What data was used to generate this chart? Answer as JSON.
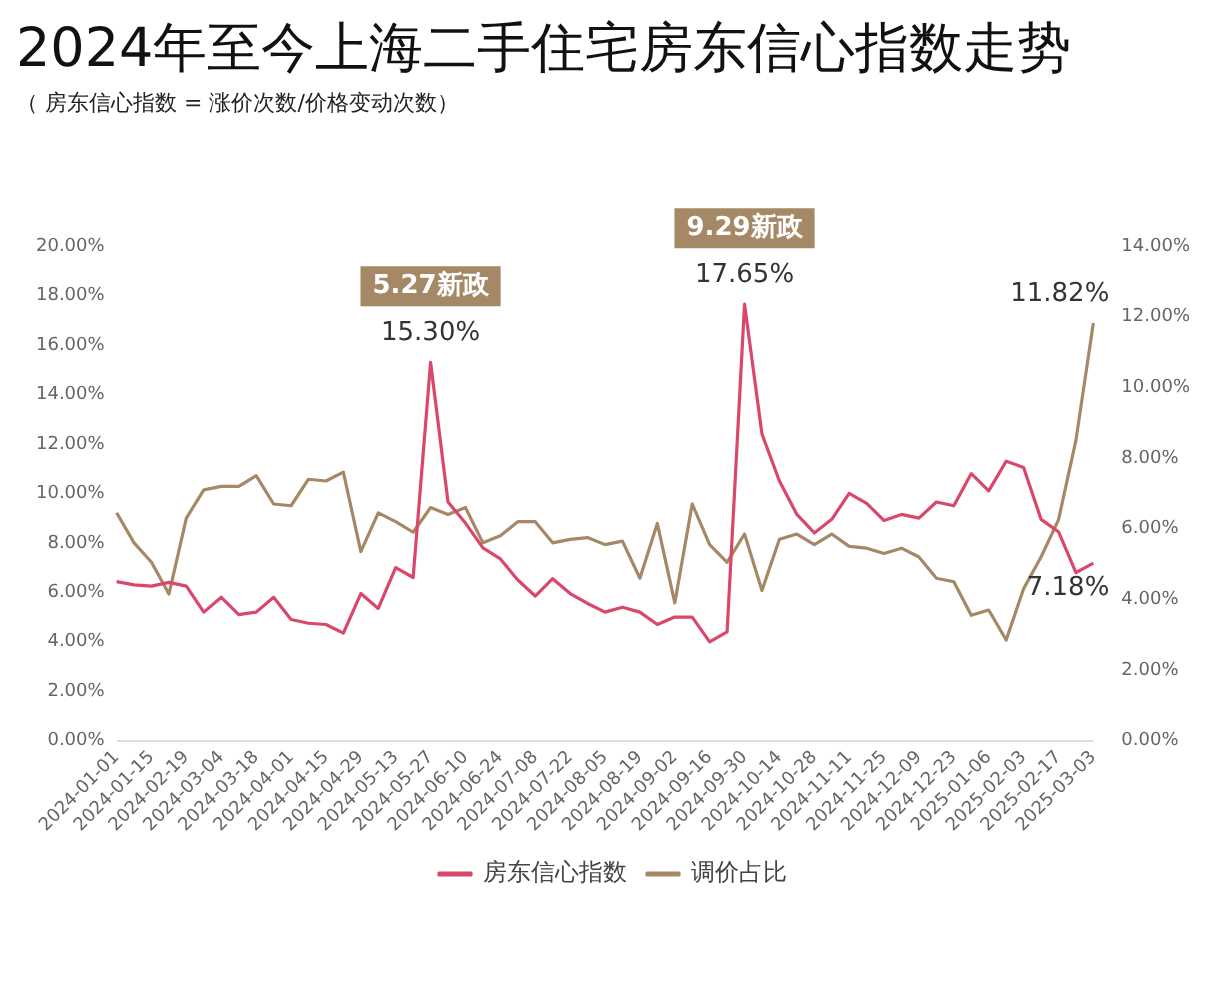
{
  "chart_data": {
    "type": "line",
    "title": "2024年至今上海二手住宅房东信心指数走势",
    "subtitle": "（ 房东信心指数 = 涨价次数/价格变动次数）",
    "categories": [
      "2024-01-01",
      null,
      "2024-01-15",
      null,
      "2024-02-19",
      null,
      "2024-03-04",
      null,
      "2024-03-18",
      null,
      "2024-04-01",
      null,
      "2024-04-15",
      null,
      "2024-04-29",
      null,
      "2024-05-13",
      null,
      "2024-05-27",
      null,
      "2024-06-10",
      null,
      "2024-06-24",
      null,
      "2024-07-08",
      null,
      "2024-07-22",
      null,
      "2024-08-05",
      null,
      "2024-08-19",
      null,
      "2024-09-02",
      null,
      "2024-09-16",
      null,
      "2024-09-30",
      null,
      "2024-10-14",
      null,
      "2024-10-28",
      null,
      "2024-11-11",
      null,
      "2024-11-25",
      null,
      "2024-12-09",
      null,
      "2024-12-23",
      null,
      "2025-01-06",
      null,
      "2025-02-03",
      null,
      "2025-02-17",
      null,
      "2025-03-03"
    ],
    "series": [
      {
        "name": "房东信心指数",
        "color": "#d9476b",
        "values": [
          6.43,
          6.3,
          6.25,
          6.4,
          6.25,
          5.2,
          5.8,
          5.1,
          5.2,
          5.8,
          4.9,
          4.75,
          4.7,
          4.35,
          5.95,
          5.35,
          7.0,
          6.6,
          15.3,
          9.65,
          8.8,
          7.8,
          7.35,
          6.5,
          5.85,
          6.55,
          5.95,
          5.55,
          5.2,
          5.4,
          5.2,
          4.7,
          5.0,
          5.0,
          4.0,
          4.4,
          17.65,
          12.4,
          10.5,
          9.15,
          8.4,
          8.95,
          10.0,
          9.6,
          8.9,
          9.15,
          9.0,
          9.65,
          9.5,
          10.8,
          10.1,
          11.3,
          11.05,
          8.95,
          8.45,
          6.8,
          7.18
        ],
        "value_labels": [
          null,
          null,
          null,
          null,
          null,
          null,
          null,
          null,
          null,
          null,
          null,
          null,
          null,
          null,
          null,
          null,
          null,
          null,
          "15.30%",
          null,
          null,
          null,
          null,
          null,
          null,
          null,
          null,
          null,
          null,
          null,
          null,
          null,
          null,
          null,
          null,
          null,
          "17.65%",
          null,
          null,
          null,
          null,
          null,
          null,
          null,
          null,
          null,
          null,
          null,
          null,
          null,
          null,
          null,
          null,
          null,
          null,
          null,
          "7.18%"
        ]
      },
      {
        "name": "调价占比",
        "color": "#a58866",
        "axis": "y2",
        "values": [
          6.45,
          5.6,
          5.05,
          4.15,
          6.3,
          7.1,
          7.2,
          7.2,
          7.5,
          6.7,
          6.65,
          7.4,
          7.35,
          7.6,
          5.35,
          6.45,
          6.2,
          5.9,
          6.6,
          6.4,
          6.6,
          5.6,
          5.8,
          6.2,
          6.2,
          5.6,
          5.7,
          5.75,
          5.55,
          5.65,
          4.6,
          6.15,
          3.9,
          6.7,
          5.55,
          5.05,
          5.85,
          4.25,
          5.7,
          5.85,
          5.55,
          5.85,
          5.5,
          5.45,
          5.3,
          5.45,
          5.2,
          4.6,
          4.5,
          3.55,
          3.7,
          2.85,
          4.3,
          5.2,
          6.25,
          8.5,
          11.82
        ],
        "value_labels": [
          null,
          null,
          null,
          null,
          null,
          null,
          null,
          null,
          null,
          null,
          null,
          null,
          null,
          null,
          null,
          null,
          null,
          null,
          null,
          null,
          null,
          null,
          null,
          null,
          null,
          null,
          null,
          null,
          null,
          null,
          null,
          null,
          null,
          null,
          null,
          null,
          null,
          null,
          null,
          null,
          null,
          null,
          null,
          null,
          null,
          null,
          null,
          null,
          null,
          null,
          null,
          null,
          null,
          null,
          null,
          null,
          "11.82%"
        ]
      }
    ],
    "ylim": [
      0,
      20
    ],
    "yticks": [
      {
        "value": 0,
        "label": "0.00%"
      },
      {
        "value": 2,
        "label": "2.00%"
      },
      {
        "value": 4,
        "label": "4.00%"
      },
      {
        "value": 6,
        "label": "6.00%"
      },
      {
        "value": 8,
        "label": "8.00%"
      },
      {
        "value": 10,
        "label": "10.00%"
      },
      {
        "value": 12,
        "label": "12.00%"
      },
      {
        "value": 14,
        "label": "14.00%"
      },
      {
        "value": 16,
        "label": "16.00%"
      },
      {
        "value": 18,
        "label": "18.00%"
      },
      {
        "value": 20,
        "label": "20.00%"
      }
    ],
    "y2lim": [
      0,
      14
    ],
    "y2ticks": [
      {
        "value": 0,
        "label": "0.00%"
      },
      {
        "value": 2,
        "label": "2.00%"
      },
      {
        "value": 4,
        "label": "4.00%"
      },
      {
        "value": 6,
        "label": "6.00%"
      },
      {
        "value": 8,
        "label": "8.00%"
      },
      {
        "value": 10,
        "label": "10.00%"
      },
      {
        "value": 12,
        "label": "12.00%"
      },
      {
        "value": 14,
        "label": "14.00%"
      }
    ],
    "annotations": [
      {
        "text": "5.27新政",
        "x": "2024-05-27",
        "y": 15.3
      },
      {
        "text": "9.29新政",
        "x": "2024-09-30",
        "y": 17.65
      }
    ],
    "grid": false,
    "legend": "bottom",
    "marker": "none",
    "line_style": "solid"
  }
}
